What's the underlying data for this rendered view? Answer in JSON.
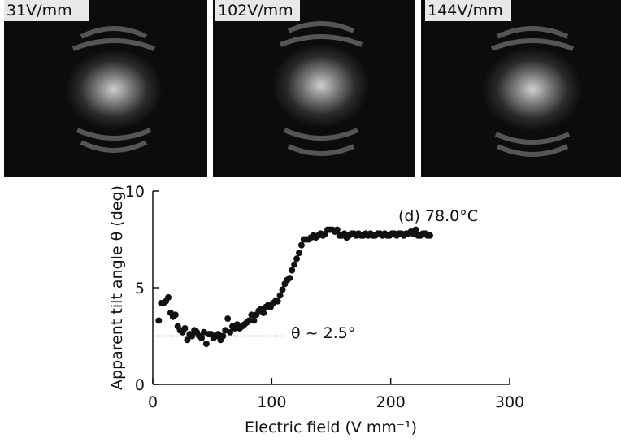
{
  "panels": [
    {
      "label": "31V/mm"
    },
    {
      "label": "102V/mm"
    },
    {
      "label": "144V/mm"
    }
  ],
  "chart_data": {
    "type": "scatter",
    "xlabel": "Electric field (V mm⁻¹)",
    "ylabel": "Apparent tilt angle θ (deg)",
    "annotations": [
      "(d) 78.0°C",
      "θ ~ 2.5°"
    ],
    "hline": {
      "y": 2.5,
      "xlim": [
        0,
        110
      ]
    },
    "xlim": [
      0,
      300
    ],
    "ylim": [
      0,
      10
    ],
    "xticks": [
      0,
      100,
      200,
      300
    ],
    "yticks": [
      0,
      5,
      10
    ],
    "color": "#111111",
    "x": [
      5,
      7,
      9,
      11,
      13,
      15,
      17,
      19,
      21,
      23,
      25,
      27,
      29,
      31,
      33,
      35,
      37,
      39,
      41,
      43,
      45,
      47,
      49,
      51,
      53,
      55,
      57,
      59,
      61,
      63,
      65,
      67,
      69,
      71,
      73,
      75,
      77,
      79,
      81,
      83,
      85,
      87,
      89,
      91,
      93,
      95,
      97,
      99,
      101,
      103,
      105,
      107,
      109,
      111,
      113,
      115,
      117,
      119,
      121,
      123,
      125,
      127,
      129,
      131,
      133,
      135,
      137,
      139,
      141,
      143,
      145,
      147,
      149,
      151,
      153,
      155,
      157,
      159,
      161,
      163,
      165,
      167,
      169,
      171,
      173,
      175,
      177,
      179,
      181,
      183,
      185,
      187,
      189,
      191,
      193,
      195,
      197,
      199,
      201,
      203,
      205,
      207,
      209,
      211,
      213,
      215,
      217,
      219,
      221,
      223,
      225,
      227,
      229,
      231,
      233
    ],
    "values": [
      3.3,
      4.2,
      4.2,
      4.3,
      4.5,
      3.7,
      3.5,
      3.6,
      3.0,
      2.8,
      2.7,
      2.9,
      2.3,
      2.6,
      2.5,
      2.8,
      2.7,
      2.5,
      2.4,
      2.7,
      2.1,
      2.6,
      2.6,
      2.4,
      2.5,
      2.6,
      2.3,
      2.5,
      2.8,
      3.4,
      2.7,
      3.0,
      2.9,
      3.1,
      2.9,
      3.0,
      3.1,
      3.2,
      3.3,
      3.6,
      3.3,
      3.6,
      3.8,
      3.9,
      3.7,
      4.0,
      4.1,
      4.0,
      4.2,
      4.3,
      4.3,
      4.6,
      4.9,
      5.2,
      5.4,
      5.5,
      5.9,
      6.2,
      6.5,
      6.8,
      7.2,
      7.5,
      7.5,
      7.5,
      7.6,
      7.7,
      7.6,
      7.7,
      7.8,
      7.7,
      7.8,
      8.0,
      8.0,
      8.0,
      7.9,
      8.0,
      7.7,
      7.7,
      7.8,
      7.6,
      7.7,
      7.8,
      7.8,
      7.7,
      7.8,
      7.7,
      7.7,
      7.8,
      7.7,
      7.8,
      7.7,
      7.7,
      7.8,
      7.8,
      7.7,
      7.8,
      7.7,
      7.7,
      7.8,
      7.8,
      7.7,
      7.8,
      7.8,
      7.7,
      7.8,
      7.8,
      7.9,
      7.8,
      8.0,
      7.7,
      7.7,
      7.8,
      7.8,
      7.7,
      7.7
    ]
  }
}
